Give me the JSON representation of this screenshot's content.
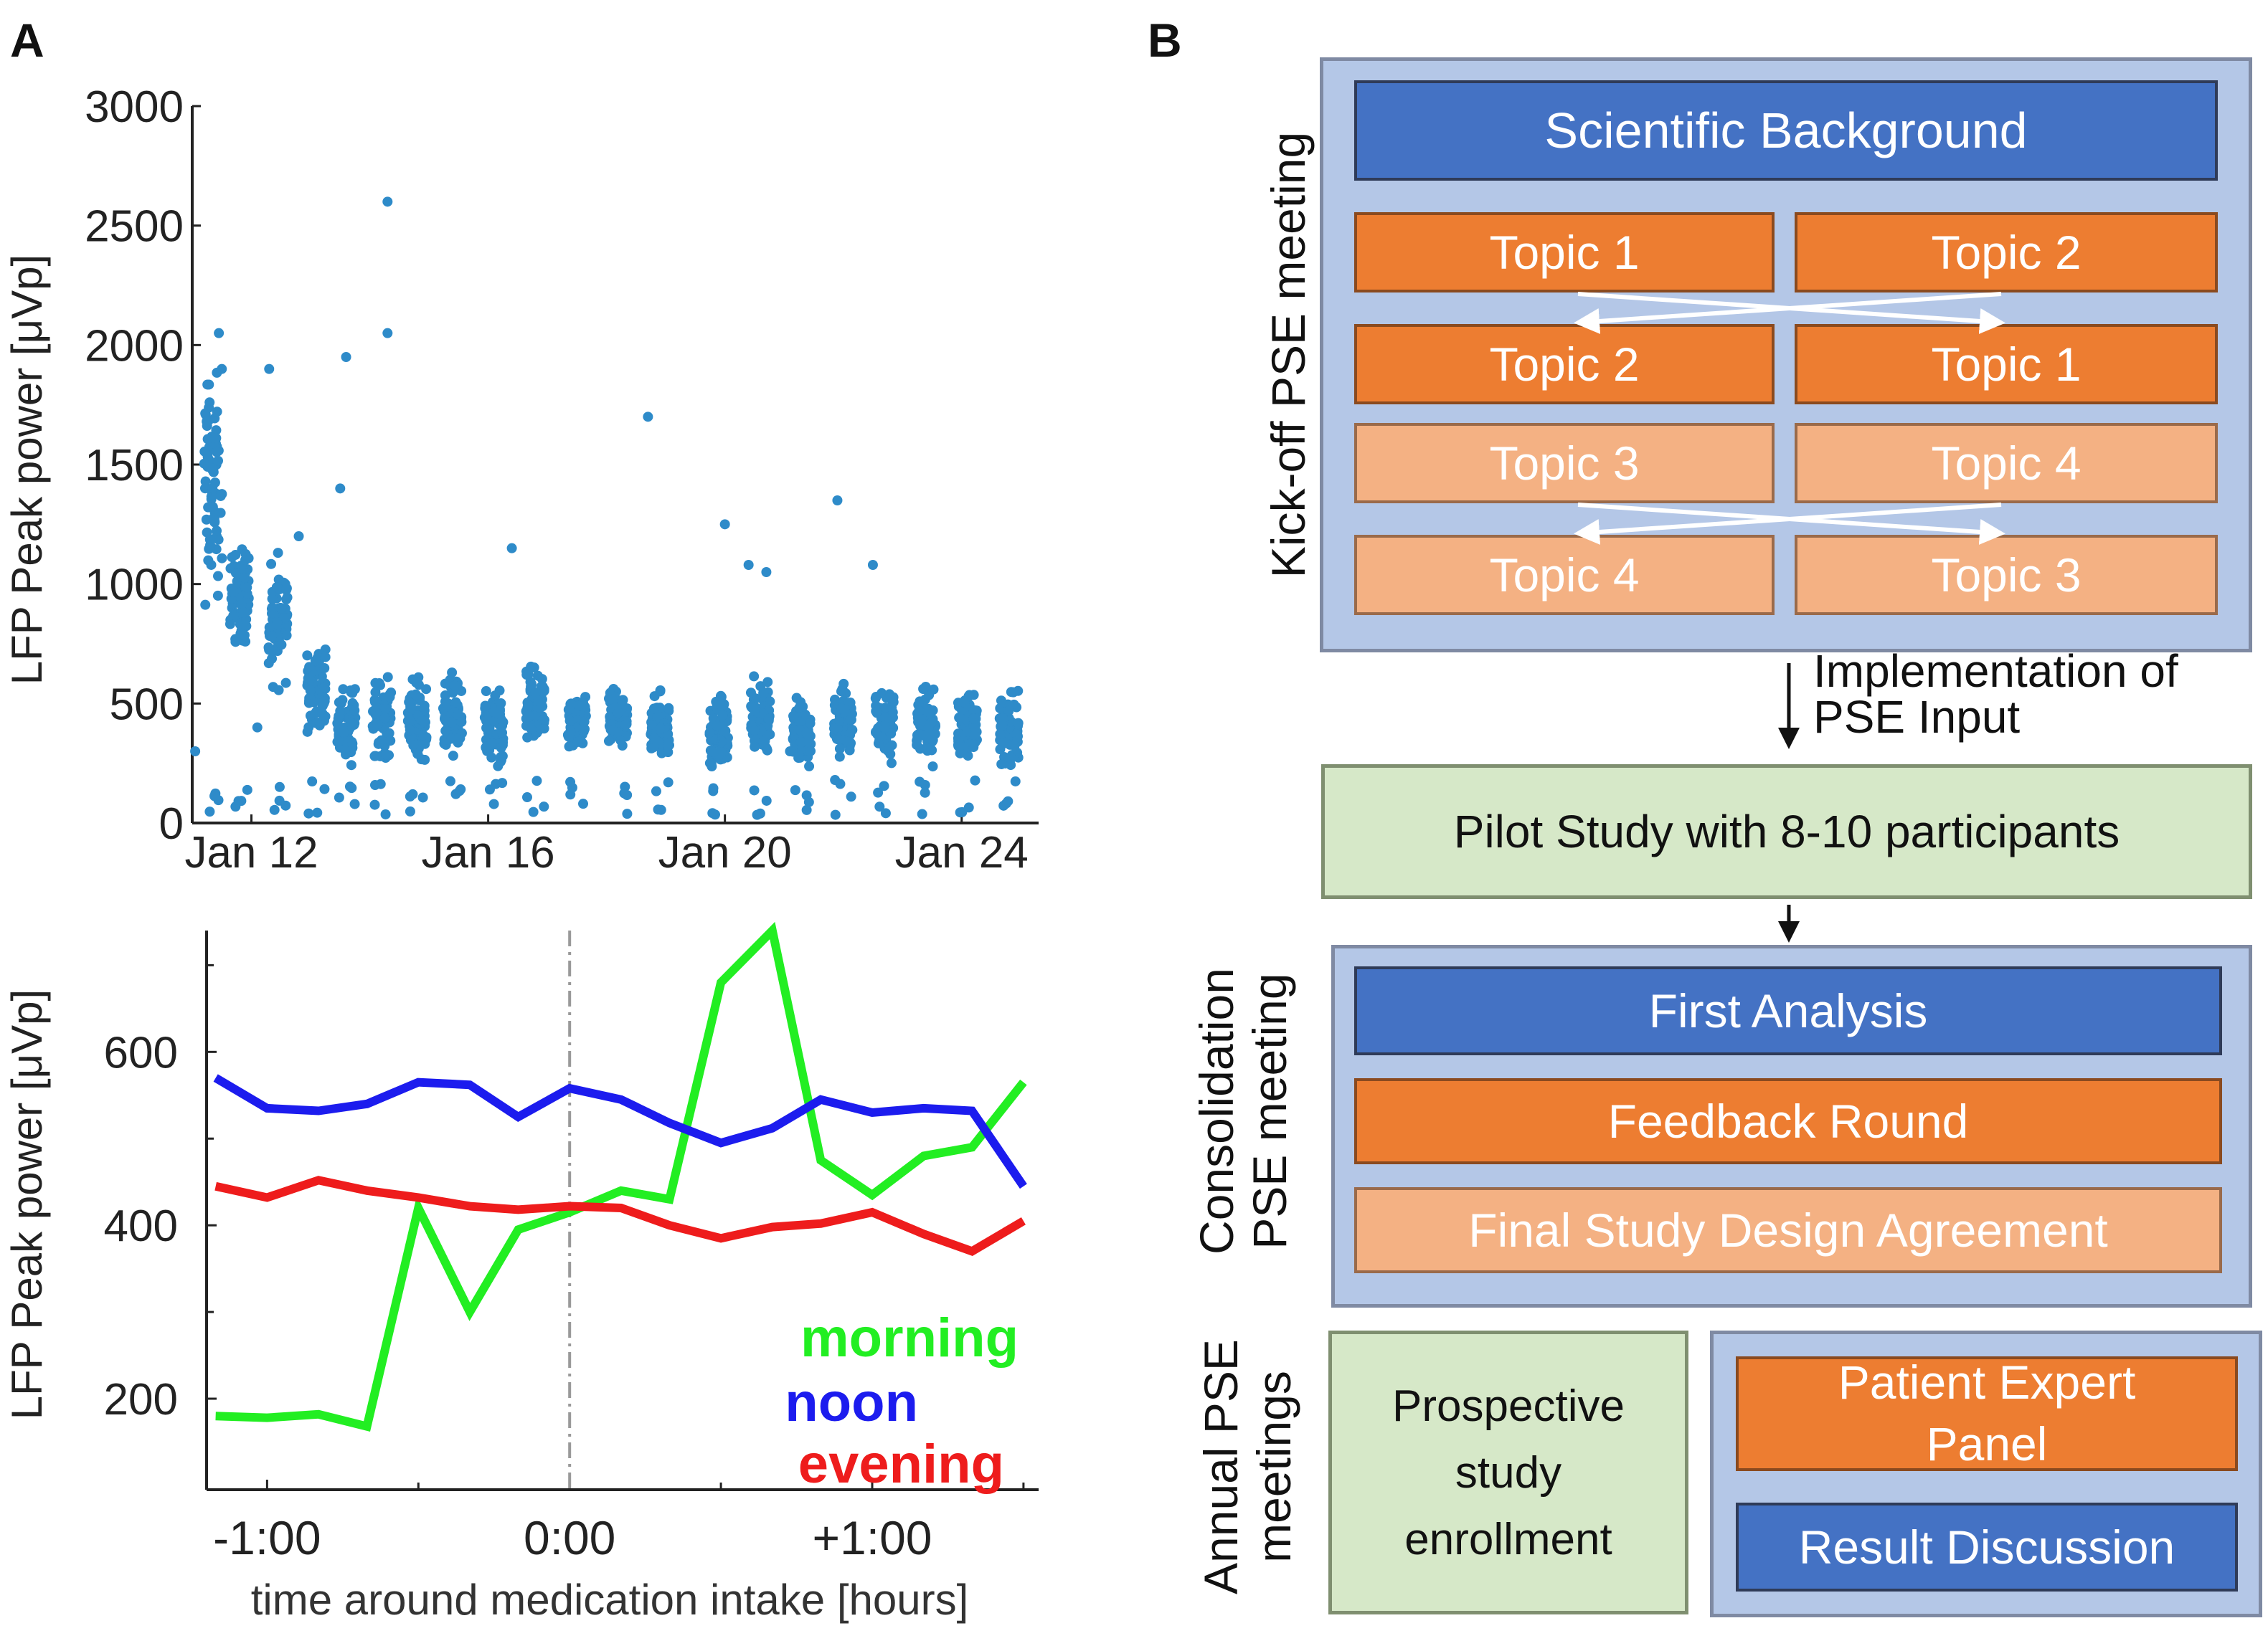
{
  "panel_a": {
    "letter": "A",
    "chart_data": [
      {
        "type": "scatter",
        "title": "",
        "xlabel": "",
        "ylabel": "LFP Peak power [μVp]",
        "x_ticks": [
          "Jan 12",
          "Jan 16",
          "Jan 20",
          "Jan 24"
        ],
        "x_tick_days": [
          12,
          16,
          20,
          24
        ],
        "y_ticks": [
          "3000",
          "2500",
          "2000",
          "1500",
          "1000",
          "500",
          "0"
        ],
        "y_tick_values": [
          3000,
          2500,
          2000,
          1500,
          1000,
          500,
          0
        ],
        "xlim": [
          11,
          25.3
        ],
        "ylim": [
          0,
          3000
        ],
        "color": "#2e8bc9",
        "clusters": [
          {
            "day": 11.35,
            "center": 1400,
            "spread": 650
          },
          {
            "day": 11.8,
            "center": 950,
            "spread": 280
          },
          {
            "day": 12.45,
            "center": 850,
            "spread": 350
          },
          {
            "day": 13.1,
            "center": 560,
            "spread": 260
          },
          {
            "day": 13.6,
            "center": 420,
            "spread": 220
          },
          {
            "day": 14.2,
            "center": 440,
            "spread": 220
          },
          {
            "day": 14.8,
            "center": 430,
            "spread": 230
          },
          {
            "day": 15.4,
            "center": 440,
            "spread": 220
          },
          {
            "day": 16.1,
            "center": 380,
            "spread": 230
          },
          {
            "day": 16.8,
            "center": 480,
            "spread": 260
          },
          {
            "day": 17.5,
            "center": 420,
            "spread": 160
          },
          {
            "day": 18.2,
            "center": 440,
            "spread": 170
          },
          {
            "day": 18.9,
            "center": 390,
            "spread": 190
          },
          {
            "day": 19.9,
            "center": 380,
            "spread": 200
          },
          {
            "day": 20.6,
            "center": 450,
            "spread": 230
          },
          {
            "day": 21.3,
            "center": 380,
            "spread": 200
          },
          {
            "day": 22.0,
            "center": 420,
            "spread": 220
          },
          {
            "day": 22.7,
            "center": 430,
            "spread": 230
          },
          {
            "day": 23.4,
            "center": 410,
            "spread": 200
          },
          {
            "day": 24.1,
            "center": 420,
            "spread": 220
          },
          {
            "day": 24.8,
            "center": 390,
            "spread": 200
          }
        ],
        "outliers": [
          [
            11.05,
            300
          ],
          [
            11.45,
            2050
          ],
          [
            11.5,
            1900
          ],
          [
            12.3,
            1900
          ],
          [
            12.8,
            1200
          ],
          [
            13.5,
            1400
          ],
          [
            13.6,
            1950
          ],
          [
            14.3,
            2600
          ],
          [
            14.3,
            2050
          ],
          [
            16.4,
            1150
          ],
          [
            18.7,
            1700
          ],
          [
            20.0,
            1250
          ],
          [
            20.4,
            1080
          ],
          [
            20.7,
            1050
          ],
          [
            21.9,
            1350
          ],
          [
            22.5,
            1080
          ],
          [
            21.1,
            300
          ],
          [
            12.1,
            400
          ]
        ]
      },
      {
        "type": "line",
        "title": "",
        "xlabel": "time around medication intake [hours]",
        "ylabel": "LFP Peak power [μVp]",
        "x_ticks": [
          "-1:00",
          "0:00",
          "+1:00"
        ],
        "x_tick_values": [
          -1.0,
          0.0,
          1.0
        ],
        "y_ticks": [
          "600",
          "400",
          "200"
        ],
        "y_tick_values": [
          600,
          400,
          200
        ],
        "xlim": [
          -1.2,
          1.55
        ],
        "ylim": [
          95,
          740
        ],
        "x": [
          -1.17,
          -1.0,
          -0.83,
          -0.67,
          -0.5,
          -0.33,
          -0.17,
          0.0,
          0.17,
          0.33,
          0.5,
          0.67,
          0.83,
          1.0,
          1.17,
          1.33,
          1.5
        ],
        "vline_x": 0.0,
        "series": [
          {
            "name": "morning",
            "color": "#22ee22",
            "values": [
              180,
              178,
              182,
              168,
              420,
              300,
              395,
              415,
              440,
              430,
              680,
              740,
              475,
              435,
              480,
              490,
              565
            ]
          },
          {
            "name": "noon",
            "color": "#1c1cee",
            "values": [
              570,
              535,
              532,
              540,
              565,
              562,
              525,
              558,
              545,
              518,
              495,
              512,
              545,
              530,
              535,
              532,
              445
            ]
          },
          {
            "name": "evening",
            "color": "#ee1c1c",
            "values": [
              445,
              432,
              452,
              440,
              432,
              422,
              418,
              422,
              420,
              400,
              385,
              398,
              402,
              415,
              390,
              370,
              405
            ]
          }
        ],
        "legend": [
          "morning",
          "noon",
          "evening"
        ],
        "legend_position": "bottom-right"
      }
    ]
  },
  "panel_b": {
    "letter": "B",
    "kickoff": {
      "label": "Kick-off PSE meeting",
      "scientific_background": "Scientific Background",
      "topics": [
        "Topic 1",
        "Topic 2",
        "Topic 2",
        "Topic 1",
        "Topic 3",
        "Topic 4",
        "Topic 4",
        "Topic 3"
      ]
    },
    "arrow1_label_line1": "Implementation of",
    "arrow1_label_line2": "PSE Input",
    "pilot": "Pilot Study with 8-10 participants",
    "consolidation": {
      "label_line1": "Consolidation",
      "label_line2": "PSE meeting",
      "first_analysis": "First Analysis",
      "feedback_round": "Feedback Round",
      "final_design": "Final Study Design Agreement"
    },
    "annual": {
      "label_line1": "Annual PSE",
      "label_line2": "meetings",
      "prospective_line1": "Prospective",
      "prospective_line2": "study",
      "prospective_line3": "enrollment",
      "patient_panel_line1": "Patient Expert",
      "patient_panel_line2": "Panel",
      "result_discussion": "Result Discussion"
    }
  }
}
